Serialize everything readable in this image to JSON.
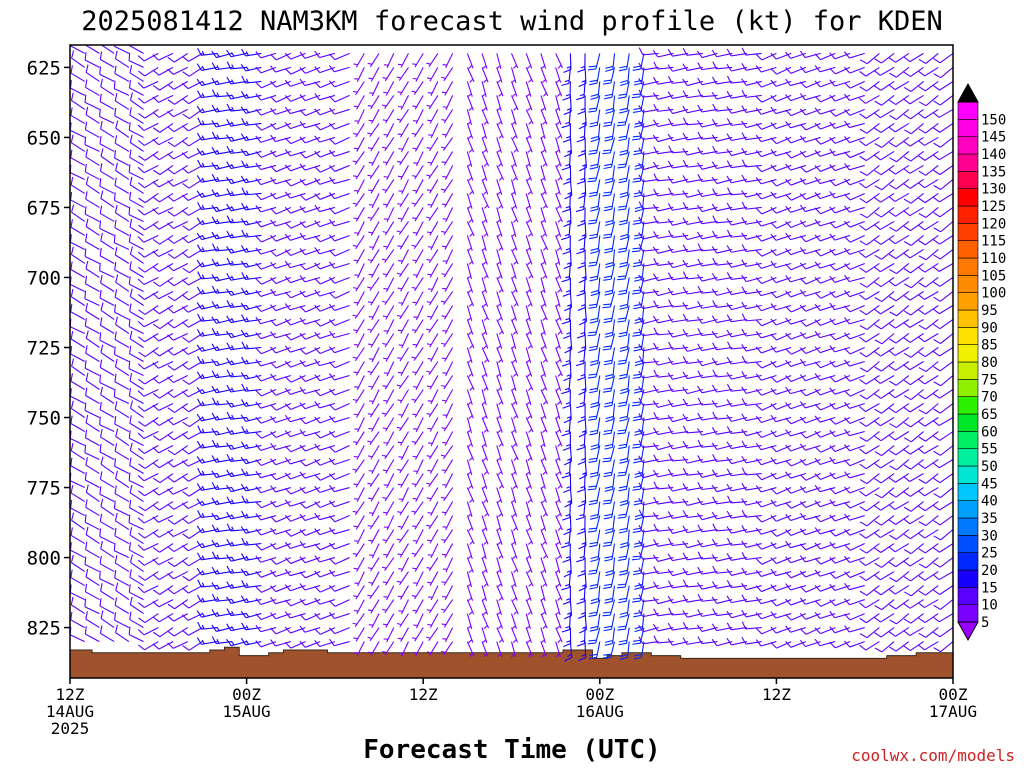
{
  "chart_data": {
    "type": "wind-barb",
    "title": "2025081412 NAM3KM forecast wind profile (kt) for KDEN",
    "xlabel": "Forecast Time (UTC)",
    "ylabel": "",
    "credit": "coolwx.com/models",
    "y_ticks": [
      625,
      650,
      675,
      700,
      725,
      750,
      775,
      800,
      825
    ],
    "y_range": [
      843,
      617
    ],
    "x_range_hours": [
      0,
      60
    ],
    "x_ticks": [
      {
        "hour": 0,
        "lines": [
          "12Z",
          "14AUG",
          "2025"
        ]
      },
      {
        "hour": 12,
        "lines": [
          "00Z",
          "15AUG"
        ]
      },
      {
        "hour": 24,
        "lines": [
          "12Z"
        ]
      },
      {
        "hour": 36,
        "lines": [
          "00Z",
          "16AUG"
        ]
      },
      {
        "hour": 48,
        "lines": [
          "12Z"
        ]
      },
      {
        "hour": 60,
        "lines": [
          "00Z",
          "17AUG"
        ]
      }
    ],
    "terrain_color": "#a0522d",
    "surface_pressure_by_hour": [
      833,
      833,
      834,
      834,
      834,
      834,
      834,
      834,
      834,
      834,
      833,
      832,
      835,
      835,
      834,
      833,
      833,
      833,
      834,
      834,
      834,
      834,
      834,
      834,
      834,
      834,
      834,
      834,
      834,
      834,
      834,
      834,
      834,
      834,
      833,
      833,
      836,
      835,
      834,
      834,
      835,
      835,
      836,
      836,
      836,
      836,
      836,
      836,
      836,
      836,
      836,
      836,
      836,
      836,
      836,
      836,
      835,
      835,
      834,
      834,
      834
    ],
    "wind_barbs": {
      "time_step_hours": 1,
      "levels": [
        620,
        625,
        630,
        635,
        640,
        645,
        650,
        655,
        660,
        665,
        670,
        675,
        680,
        685,
        690,
        695,
        700,
        705,
        710,
        715,
        720,
        725,
        730,
        735,
        740,
        745,
        750,
        755,
        760,
        765,
        770,
        775,
        780,
        785,
        790,
        795,
        800,
        805,
        810,
        815,
        820,
        825,
        830,
        835
      ],
      "phases": [
        {
          "from_hour": 0,
          "to_hour": 6,
          "speed_kt": 10,
          "direction_deg": 300
        },
        {
          "from_hour": 6,
          "to_hour": 10,
          "speed_kt": 10,
          "direction_deg": 240
        },
        {
          "from_hour": 10,
          "to_hour": 14,
          "speed_kt": 15,
          "direction_deg": 260
        },
        {
          "from_hour": 14,
          "to_hour": 20,
          "speed_kt": 10,
          "direction_deg": 250
        },
        {
          "from_hour": 20,
          "to_hour": 27,
          "speed_kt": 5,
          "direction_deg": 210
        },
        {
          "from_hour": 27,
          "to_hour": 34,
          "speed_kt": 5,
          "direction_deg": 160
        },
        {
          "from_hour": 34,
          "to_hour": 36,
          "speed_kt": 15,
          "direction_deg": 180
        },
        {
          "from_hour": 36,
          "to_hour": 40,
          "speed_kt": 20,
          "direction_deg": 190
        },
        {
          "from_hour": 40,
          "to_hour": 48,
          "speed_kt": 10,
          "direction_deg": 260
        },
        {
          "from_hour": 48,
          "to_hour": 55,
          "speed_kt": 10,
          "direction_deg": 250
        },
        {
          "from_hour": 55,
          "to_hour": 61,
          "speed_kt": 10,
          "direction_deg": 235
        }
      ],
      "direction_note": "direction wind blows from, degrees"
    },
    "colorbar": {
      "min_label_value": 5,
      "max_label_value": 150,
      "step": 5,
      "colors": [
        "#7a00ff",
        "#5a00ff",
        "#1800ff",
        "#0028ff",
        "#0050ff",
        "#0078ff",
        "#00a0ff",
        "#00c8ff",
        "#00e6d2",
        "#00f0a0",
        "#00f064",
        "#00e628",
        "#2bf000",
        "#8ff000",
        "#c8f000",
        "#f0f000",
        "#ffe000",
        "#ffc000",
        "#ffa000",
        "#ff8c00",
        "#ff7800",
        "#ff6000",
        "#ff4000",
        "#ff2000",
        "#ff0000",
        "#ff0050",
        "#ff0090",
        "#ff00c0",
        "#ff00e6",
        "#ff00ff"
      ],
      "arrow_low_color": "#9a00ff",
      "arrow_high_color": "#000000"
    }
  }
}
